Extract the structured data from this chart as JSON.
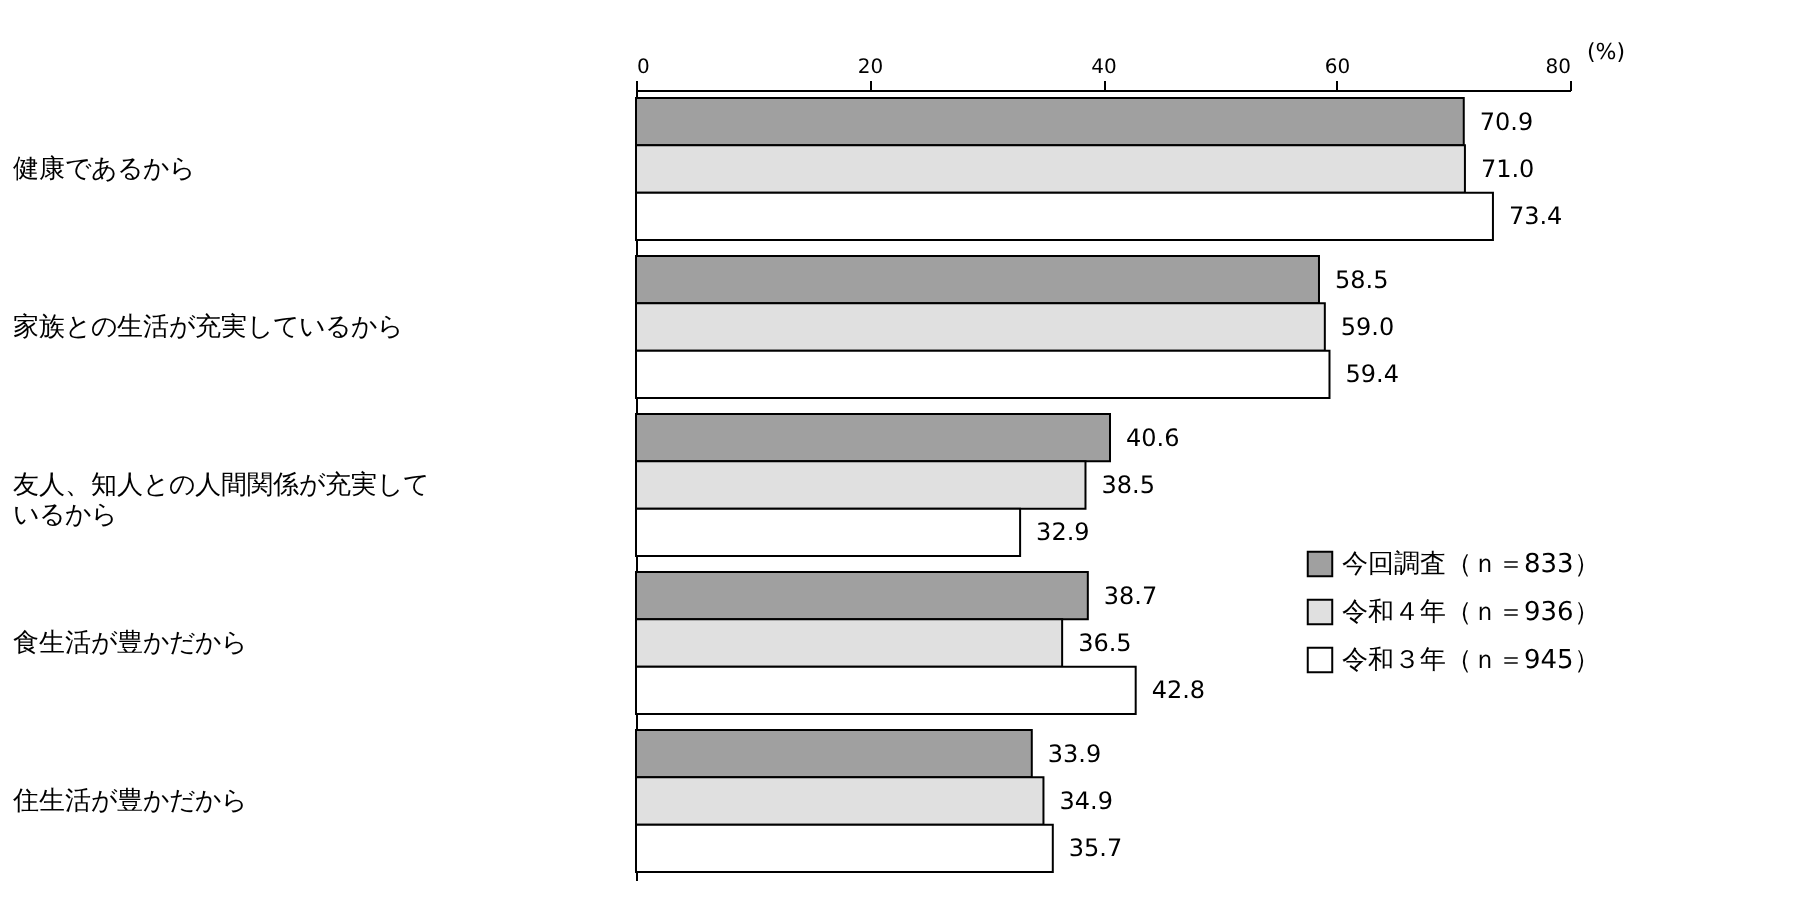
{
  "chart_data": {
    "type": "bar",
    "orientation": "horizontal",
    "xlabel": "(%)",
    "categories": [
      "健康であるから",
      "家族との生活が充実しているから",
      "友人、知人との人間関係が充実しているから",
      "食生活が豊かだから",
      "住生活が豊かだから"
    ],
    "series": [
      {
        "name": "今回調査（ｎ＝833）",
        "color": "#a0a0a0",
        "values": [
          70.9,
          58.5,
          40.6,
          38.7,
          33.9
        ],
        "value_labels": [
          "70.9",
          "58.5",
          "40.6",
          "38.7",
          "33.9"
        ]
      },
      {
        "name": "令和４年（ｎ＝936）",
        "color": "#e0e0e0",
        "values": [
          71.0,
          59.0,
          38.5,
          36.5,
          34.9
        ],
        "value_labels": [
          "71.0",
          "59.0",
          "38.5",
          "36.5",
          "34.9"
        ]
      },
      {
        "name": "令和３年（ｎ＝945）",
        "color": "#ffffff",
        "values": [
          73.4,
          59.4,
          32.9,
          42.8,
          35.7
        ],
        "value_labels": [
          "73.4",
          "59.4",
          "32.9",
          "42.8",
          "35.7"
        ]
      }
    ],
    "xlim": [
      0,
      80
    ],
    "xticks": [
      0,
      20,
      40,
      60,
      80
    ],
    "legend": "right",
    "grid": false
  }
}
